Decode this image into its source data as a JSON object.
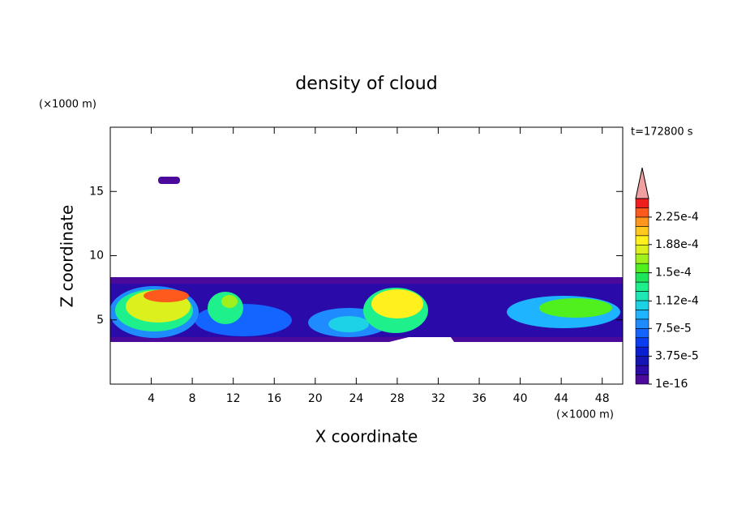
{
  "chart_data": {
    "type": "contour",
    "title": "density of cloud",
    "x_label": "X coordinate",
    "y_label": "Z coordinate",
    "x_unit": "(×1000 m)",
    "y_unit": "(×1000 m)",
    "annotation": "t=172800 s",
    "xlim": [
      0,
      50
    ],
    "ylim": [
      0,
      20
    ],
    "xticks": [
      4,
      8,
      12,
      16,
      20,
      24,
      28,
      32,
      36,
      40,
      44,
      48
    ],
    "yticks": [
      5,
      10,
      15
    ],
    "colorbar": {
      "lim": [
        1e-16,
        0.00025
      ],
      "ticks": [
        1e-16,
        {
          "value": 3.75e-05,
          "label": "3.75e-5"
        },
        {
          "value": 7.5e-05,
          "label": "7.5e-5"
        },
        {
          "value": 0.000112,
          "label": "1.12e-4"
        },
        {
          "value": 0.00015,
          "label": "1.5e-4"
        },
        {
          "value": 0.000188,
          "label": "1.88e-4"
        },
        {
          "value": 0.000225,
          "label": "2.25e-4"
        }
      ],
      "colors": [
        "#4b0a9c",
        "#2a0aa8",
        "#1414b4",
        "#0a1ed2",
        "#0a3cf0",
        "#1464ff",
        "#1e8cff",
        "#1eb4ff",
        "#1ed2e6",
        "#1ee6b4",
        "#1ef08c",
        "#1ee65a",
        "#50f01e",
        "#a0f01e",
        "#dcf01e",
        "#fff01e",
        "#ffc81e",
        "#ff961e",
        "#ff5a1e",
        "#f01e1e"
      ],
      "extend_color": "#f0a0a0"
    }
  }
}
